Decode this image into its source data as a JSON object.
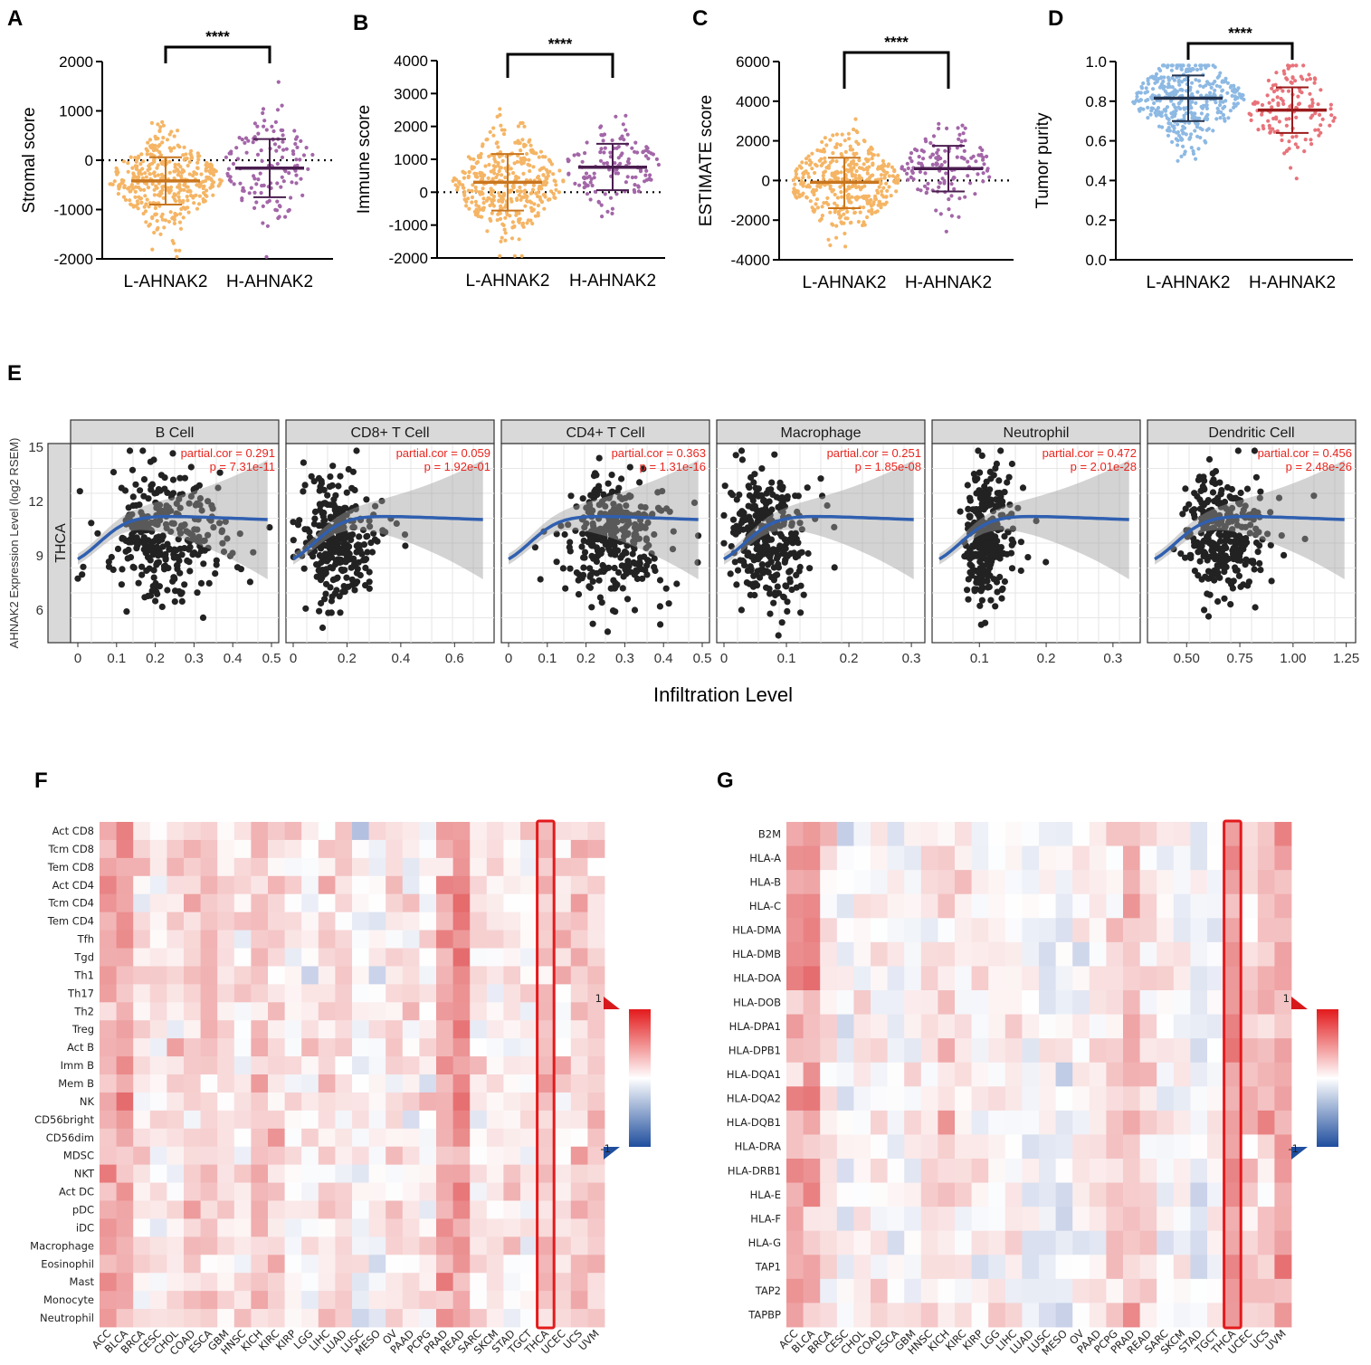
{
  "panels_AD": [
    {
      "letter": "A",
      "ylabel": "Stromal score",
      "significance": "****",
      "ylim": [
        -2000,
        2000
      ],
      "yticks": [
        "2000",
        "1000",
        "0",
        "-1000",
        "-2000"
      ],
      "groups": [
        "L-AHNAK2",
        "H-AHNAK2"
      ],
      "means": [
        -420,
        -160
      ],
      "sd_low": [
        -900,
        -750
      ],
      "sd_high": [
        60,
        430
      ],
      "colors": [
        "#f5b565",
        "#a366a8"
      ],
      "mean_colors": [
        "#c9761f",
        "#4a1d4f"
      ],
      "zero_line": true
    },
    {
      "letter": "B",
      "ylabel": "Immune score",
      "significance": "****",
      "ylim": [
        -2000,
        4000
      ],
      "yticks": [
        "4000",
        "3000",
        "2000",
        "1000",
        "0",
        "-1000",
        "-2000"
      ],
      "groups": [
        "L-AHNAK2",
        "H-AHNAK2"
      ],
      "means": [
        300,
        760
      ],
      "sd_low": [
        -560,
        60
      ],
      "sd_high": [
        1160,
        1470
      ],
      "colors": [
        "#f5b565",
        "#a366a8"
      ],
      "mean_colors": [
        "#c9761f",
        "#4a1d4f"
      ],
      "zero_line": true
    },
    {
      "letter": "C",
      "ylabel": "ESTIMATE score",
      "significance": "****",
      "ylim": [
        -4000,
        6000
      ],
      "yticks": [
        "6000",
        "4000",
        "2000",
        "0",
        "-2000",
        "-4000"
      ],
      "groups": [
        "L-AHNAK2",
        "H-AHNAK2"
      ],
      "means": [
        -90,
        600
      ],
      "sd_low": [
        -1400,
        -550
      ],
      "sd_high": [
        1150,
        1750
      ],
      "colors": [
        "#f5b565",
        "#a366a8"
      ],
      "mean_colors": [
        "#c9761f",
        "#4a1d4f"
      ],
      "zero_line": true
    },
    {
      "letter": "D",
      "ylabel": "Tumor purity",
      "significance": "****",
      "ylim": [
        0,
        1
      ],
      "yticks": [
        "1.0",
        "0.8",
        "0.6",
        "0.4",
        "0.2",
        "0.0"
      ],
      "groups": [
        "L-AHNAK2",
        "H-AHNAK2"
      ],
      "means": [
        0.815,
        0.755
      ],
      "sd_low": [
        0.7,
        0.64
      ],
      "sd_high": [
        0.93,
        0.87
      ],
      "colors": [
        "#8db9e3",
        "#e8737a"
      ],
      "mean_colors": [
        "#23334f",
        "#9b1b1b"
      ],
      "zero_line": false
    }
  ],
  "panel_E": {
    "letter": "E",
    "cancer": "THCA",
    "ylabel": "AHNAK2 Expression Level (log2 RSEM)",
    "xlabel": "Infiltration Level",
    "yticks": [
      "15",
      "12",
      "9",
      "6"
    ],
    "facets": [
      {
        "name": "B Cell",
        "cor": "partial.cor = 0.291",
        "p": "p = 7.31e-11",
        "xticks": [
          "0",
          "0.1",
          "0.2",
          "0.3",
          "0.4",
          "0.5"
        ],
        "xlim": [
          0,
          0.5
        ],
        "cx": 0.18,
        "sx": 0.09
      },
      {
        "name": "CD8+ T Cell",
        "cor": "partial.cor = 0.059",
        "p": "p = 1.92e-01",
        "xticks": [
          "0",
          "0.2",
          "0.4",
          "0.6"
        ],
        "xlim": [
          0,
          0.72
        ],
        "cx": 0.12,
        "sx": 0.08
      },
      {
        "name": "CD4+ T Cell",
        "cor": "partial.cor = 0.363",
        "p": "p = 1.31e-16",
        "xticks": [
          "0",
          "0.1",
          "0.2",
          "0.3",
          "0.4",
          "0.5"
        ],
        "xlim": [
          0,
          0.5
        ],
        "cx": 0.24,
        "sx": 0.07
      },
      {
        "name": "Macrophage",
        "cor": "partial.cor = 0.251",
        "p": "p = 1.85e-08",
        "xticks": [
          "0",
          "0.1",
          "0.2",
          "0.3"
        ],
        "xlim": [
          0,
          0.31
        ],
        "cx": 0.05,
        "sx": 0.035
      },
      {
        "name": "Neutrophil",
        "cor": "partial.cor = 0.472",
        "p": "p = 2.01e-28",
        "xticks": [
          "0.1",
          "0.2",
          "0.3"
        ],
        "xlim": [
          0.04,
          0.33
        ],
        "cx": 0.1,
        "sx": 0.02
      },
      {
        "name": "Dendritic Cell",
        "cor": "partial.cor = 0.456",
        "p": "p = 2.48e-26",
        "xticks": [
          "0.50",
          "0.75",
          "1.00",
          "1.25"
        ],
        "xlim": [
          0.35,
          1.26
        ],
        "cx": 0.62,
        "sx": 0.12
      }
    ]
  },
  "panel_F": {
    "letter": "F",
    "rows": [
      "Act CD8",
      "Tcm CD8",
      "Tem CD8",
      "Act CD4",
      "Tcm CD4",
      "Tem CD4",
      "Tfh",
      "Tgd",
      "Th1",
      "Th17",
      "Th2",
      "Treg",
      "Act B",
      "Imm B",
      "Mem B",
      "NK",
      "CD56bright",
      "CD56dim",
      "MDSC",
      "NKT",
      "Act DC",
      "pDC",
      "iDC",
      "Macrophage",
      "Eosinophil",
      "Mast",
      "Monocyte",
      "Neutrophil"
    ],
    "cols": [
      "ACC",
      "BLCA",
      "BRCA",
      "CESC",
      "CHOL",
      "COAD",
      "ESCA",
      "GBM",
      "HNSC",
      "KICH",
      "KIRC",
      "KIRP",
      "LGG",
      "LIHC",
      "LUAD",
      "LUSC",
      "MESO",
      "OV",
      "PAAD",
      "PCPG",
      "PRAD",
      "READ",
      "SARC",
      "SKCM",
      "STAD",
      "TGCT",
      "THCA",
      "UCEC",
      "UCS",
      "UVM"
    ],
    "highlight": "THCA",
    "legend_max": "1",
    "legend_min": "-1"
  },
  "panel_G": {
    "letter": "G",
    "rows": [
      "B2M",
      "HLA-A",
      "HLA-B",
      "HLA-C",
      "HLA-DMA",
      "HLA-DMB",
      "HLA-DOA",
      "HLA-DOB",
      "HLA-DPA1",
      "HLA-DPB1",
      "HLA-DQA1",
      "HLA-DQA2",
      "HLA-DQB1",
      "HLA-DRA",
      "HLA-DRB1",
      "HLA-E",
      "HLA-F",
      "HLA-G",
      "TAP1",
      "TAP2",
      "TAPBP"
    ],
    "cols": [
      "ACC",
      "BLCA",
      "BRCA",
      "CESC",
      "CHOL",
      "COAD",
      "ESCA",
      "GBM",
      "HNSC",
      "KICH",
      "KIRC",
      "KIRP",
      "LGG",
      "LIHC",
      "LUAD",
      "LUSC",
      "MESO",
      "OV",
      "PAAD",
      "PCPG",
      "PRAD",
      "READ",
      "SARC",
      "SKCM",
      "STAD",
      "TGCT",
      "THCA",
      "UCEC",
      "UCS",
      "UVM"
    ],
    "highlight": "THCA",
    "legend_max": "1",
    "legend_min": "-1"
  },
  "colors": {
    "heat_pos": "#d7191c",
    "heat_neg": "#2b4fa8",
    "highlight": "#e31a1c",
    "smooth": "#2f5fb0",
    "stat_text": "#e8261f",
    "strip_bg": "#d9d9d9"
  }
}
